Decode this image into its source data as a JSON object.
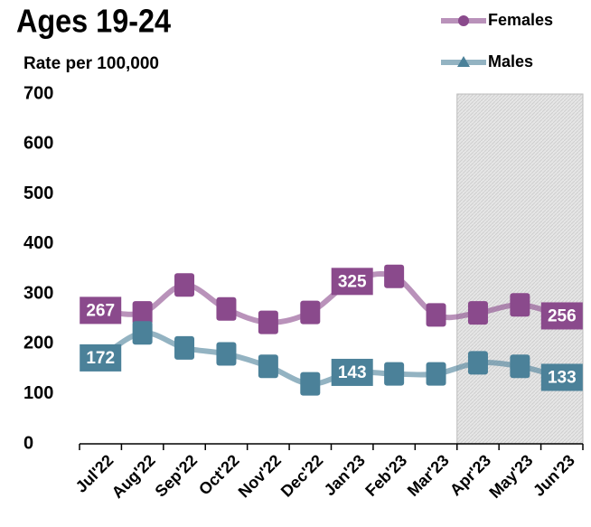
{
  "chart_data": {
    "type": "line",
    "title": "Ages 19-24",
    "subtitle": "Rate per 100,000",
    "categories": [
      "Jul'22",
      "Aug'22",
      "Sep'22",
      "Oct'22",
      "Nov'22",
      "Dec'22",
      "Jan'23",
      "Feb'23",
      "Mar'23",
      "Apr'23",
      "May'23",
      "Jun'23"
    ],
    "series": [
      {
        "name": "Females",
        "color": "#8a4a8c",
        "values": [
          267,
          262,
          318,
          270,
          243,
          263,
          325,
          335,
          258,
          262,
          278,
          256
        ],
        "value_labels": [
          "267",
          null,
          null,
          null,
          null,
          null,
          "325",
          null,
          null,
          null,
          null,
          "256"
        ]
      },
      {
        "name": "Males",
        "color": "#4b8199",
        "values": [
          172,
          222,
          192,
          180,
          155,
          120,
          143,
          140,
          140,
          162,
          155,
          133
        ],
        "value_labels": [
          "172",
          null,
          null,
          null,
          null,
          null,
          "143",
          null,
          null,
          null,
          null,
          "133"
        ]
      }
    ],
    "ylim": [
      0,
      700
    ],
    "yticks": [
      0,
      100,
      200,
      300,
      400,
      500,
      600,
      700
    ],
    "shaded": {
      "from": "Apr'23"
    },
    "legend": "top-right"
  }
}
